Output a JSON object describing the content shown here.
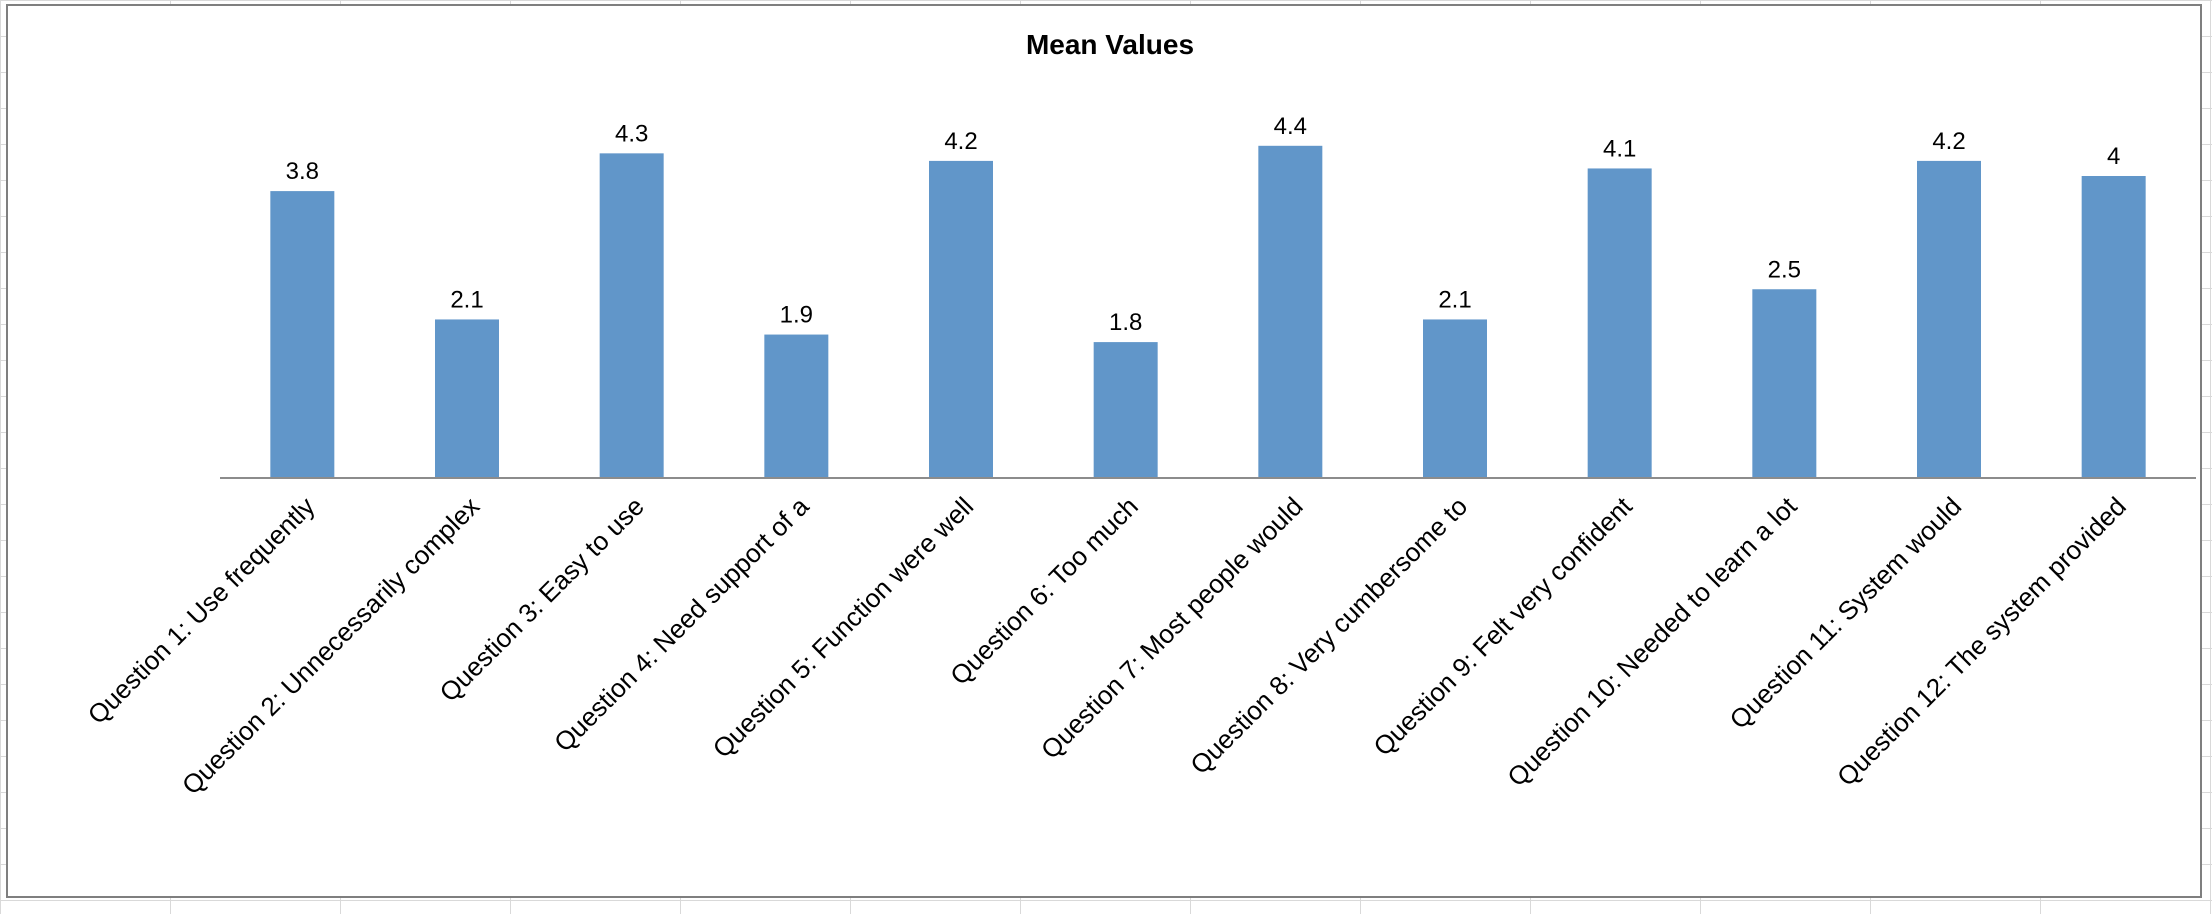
{
  "chart_data": {
    "type": "bar",
    "title": "Mean Values",
    "xlabel": "",
    "ylabel": "",
    "categories": [
      "Question 1: Use frequently",
      "Question 2: Unnecessarily complex",
      "Question 3: Easy to use",
      "Question 4: Need support of a",
      "Question 5: Function were well",
      "Question 6: Too much",
      "Question 7: Most people would",
      "Question 8: Very cumbersome to",
      "Question 9: Felt very confident",
      "Question 10: Needed to learn a lot",
      "Question 11: System would",
      "Question 12: The system provided"
    ],
    "values": [
      3.8,
      2.1,
      4.3,
      1.9,
      4.2,
      1.8,
      4.4,
      2.1,
      4.1,
      2.5,
      4.2,
      4
    ],
    "data_labels": [
      "3.8",
      "2.1",
      "4.3",
      "1.9",
      "4.2",
      "1.8",
      "4.4",
      "2.1",
      "4.1",
      "2.5",
      "4.2",
      "4"
    ],
    "ylim": [
      0,
      5
    ],
    "grid": false,
    "legend": "none",
    "bar_color": "#6196c9"
  }
}
